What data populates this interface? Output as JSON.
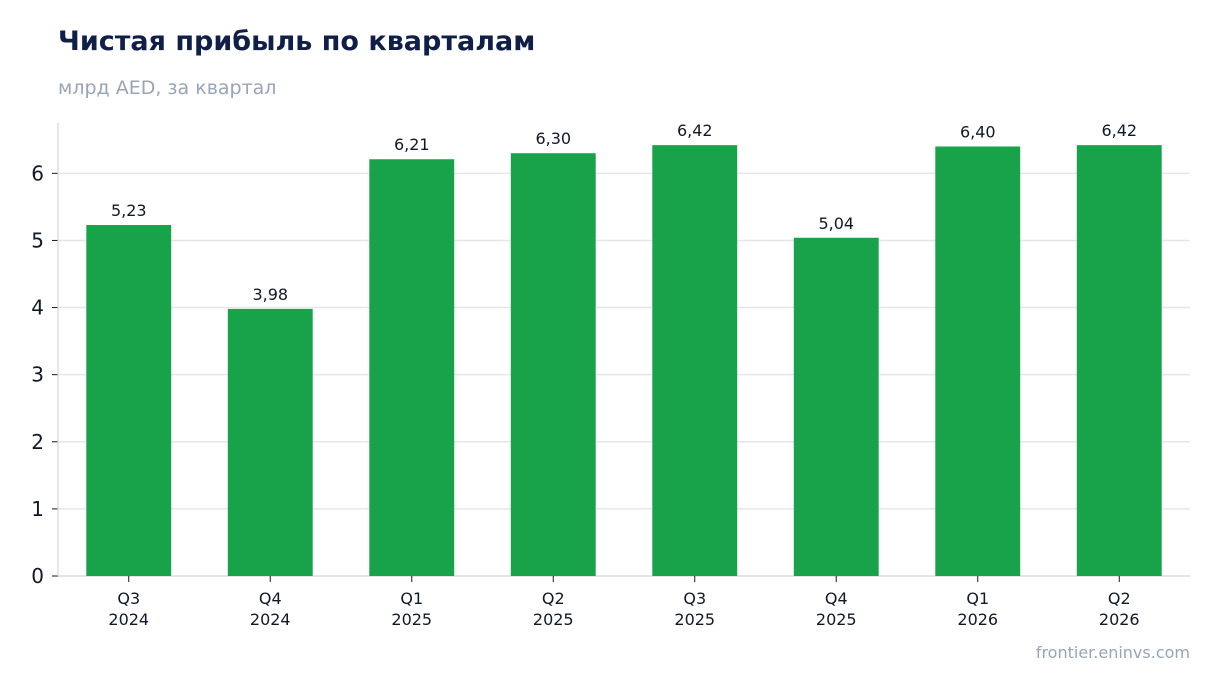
{
  "source": "frontier.eninvs.com",
  "colors": {
    "bar": "#18a34a",
    "grid": "#e3e6ea",
    "axis": "#d1d5db"
  },
  "chart_data": {
    "type": "bar",
    "title": "Чистая прибыль по кварталам",
    "subtitle": "млрд AED, за квартал",
    "categories": [
      [
        "Q3",
        "2024"
      ],
      [
        "Q4",
        "2024"
      ],
      [
        "Q1",
        "2025"
      ],
      [
        "Q2",
        "2025"
      ],
      [
        "Q3",
        "2025"
      ],
      [
        "Q4",
        "2025"
      ],
      [
        "Q1",
        "2026"
      ],
      [
        "Q2",
        "2026"
      ]
    ],
    "values": [
      5.23,
      3.98,
      6.21,
      6.3,
      6.42,
      5.04,
      6.4,
      6.42
    ],
    "value_labels": [
      "5,23",
      "3,98",
      "6,21",
      "6,30",
      "6,42",
      "5,04",
      "6,40",
      "6,42"
    ],
    "yticks": [
      0,
      1,
      2,
      3,
      4,
      5,
      6
    ],
    "ylim": [
      0,
      6.75
    ],
    "grid": true
  }
}
